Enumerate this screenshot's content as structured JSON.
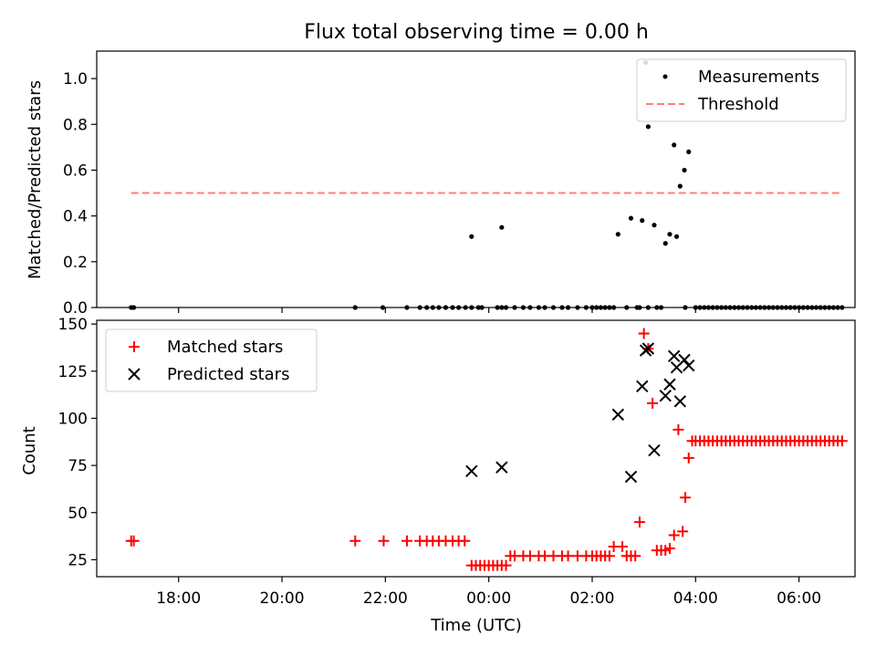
{
  "chart_data": [
    {
      "type": "scatter",
      "title": "Flux total observing time = 0.00 h",
      "xlabel": "",
      "ylabel": "Matched/Predicted stars",
      "ylim": [
        0,
        1.12
      ],
      "yticks": [
        "0.0",
        "0.2",
        "0.4",
        "0.6",
        "0.8",
        "1.0"
      ],
      "legend_position": "upper right",
      "series": [
        {
          "name": "Measurements",
          "color": "#000000",
          "marker": "dot",
          "x": [
            "17:05",
            "17:08",
            "21:25",
            "21:57",
            "22:25",
            "22:40",
            "22:48",
            "22:55",
            "23:02",
            "23:10",
            "23:18",
            "23:25",
            "23:33",
            "23:40",
            "23:48",
            "23:52",
            "00:10",
            "00:15",
            "00:20",
            "00:30",
            "00:40",
            "00:48",
            "00:58",
            "01:05",
            "01:15",
            "01:25",
            "01:32",
            "01:43",
            "01:53",
            "02:00",
            "02:05",
            "02:10",
            "02:15",
            "02:20",
            "02:25",
            "02:40",
            "02:52",
            "02:55",
            "03:05",
            "03:15",
            "03:20",
            "03:48",
            "04:00",
            "04:05",
            "04:10",
            "04:15",
            "04:20",
            "04:25",
            "04:30",
            "04:35",
            "04:40",
            "04:45",
            "04:50",
            "04:55",
            "05:00",
            "05:05",
            "05:10",
            "05:15",
            "05:20",
            "05:25",
            "05:30",
            "05:35",
            "05:40",
            "05:45",
            "05:50",
            "05:55",
            "06:00",
            "06:05",
            "06:10",
            "06:15",
            "06:20",
            "06:25",
            "06:30",
            "06:35",
            "06:40",
            "06:45",
            "06:50",
            "23:40",
            "00:15",
            "02:30",
            "02:45",
            "02:58",
            "03:02",
            "03:05",
            "03:12",
            "03:25",
            "03:30",
            "03:35",
            "03:38",
            "03:42",
            "03:47",
            "03:52"
          ],
          "y": [
            0,
            0,
            0,
            0,
            0,
            0,
            0,
            0,
            0,
            0,
            0,
            0,
            0,
            0,
            0,
            0,
            0,
            0,
            0,
            0,
            0,
            0,
            0,
            0,
            0,
            0,
            0,
            0,
            0,
            0,
            0,
            0,
            0,
            0,
            0,
            0,
            0,
            0,
            0,
            0,
            0,
            0,
            0,
            0,
            0,
            0,
            0,
            0,
            0,
            0,
            0,
            0,
            0,
            0,
            0,
            0,
            0,
            0,
            0,
            0,
            0,
            0,
            0,
            0,
            0,
            0,
            0,
            0,
            0,
            0,
            0,
            0,
            0,
            0,
            0,
            0,
            0,
            0.31,
            0.35,
            0.32,
            0.39,
            0.38,
            1.07,
            0.79,
            0.36,
            0.28,
            0.32,
            0.71,
            0.31,
            0.53,
            0.6,
            0.68
          ]
        },
        {
          "name": "Threshold",
          "color": "#ff7f7f",
          "style": "dashed",
          "x": [
            "17:05",
            "06:50"
          ],
          "y": [
            0.5,
            0.5
          ]
        }
      ]
    },
    {
      "type": "scatter",
      "title": "",
      "xlabel": "Time (UTC)",
      "ylabel": "Count",
      "ylim": [
        16,
        152
      ],
      "yticks": [
        "25",
        "50",
        "75",
        "100",
        "125",
        "150"
      ],
      "xticks": [
        "18:00",
        "20:00",
        "22:00",
        "00:00",
        "02:00",
        "04:00",
        "06:00"
      ],
      "x_range": [
        "16:25",
        "07:05"
      ],
      "legend_position": "upper left",
      "series": [
        {
          "name": "Matched stars",
          "color": "#ff0000",
          "marker": "plus",
          "x": [
            "17:05",
            "17:08",
            "21:25",
            "21:58",
            "22:25",
            "22:40",
            "22:48",
            "22:55",
            "23:02",
            "23:10",
            "23:18",
            "23:25",
            "23:32",
            "23:40",
            "23:45",
            "23:50",
            "23:55",
            "00:00",
            "00:05",
            "00:10",
            "00:15",
            "00:20",
            "00:25",
            "00:30",
            "00:40",
            "00:48",
            "00:58",
            "01:05",
            "01:15",
            "01:25",
            "01:32",
            "01:43",
            "01:53",
            "02:00",
            "02:05",
            "02:10",
            "02:15",
            "02:20",
            "02:25",
            "02:35",
            "02:40",
            "02:45",
            "02:50",
            "02:55",
            "03:00",
            "03:05",
            "03:10",
            "03:15",
            "03:20",
            "03:25",
            "03:30",
            "03:35",
            "03:40",
            "03:45",
            "03:48",
            "03:52",
            "03:56",
            "04:00",
            "04:05",
            "04:10",
            "04:15",
            "04:20",
            "04:25",
            "04:30",
            "04:35",
            "04:40",
            "04:45",
            "04:50",
            "04:55",
            "05:00",
            "05:05",
            "05:10",
            "05:15",
            "05:20",
            "05:25",
            "05:30",
            "05:35",
            "05:40",
            "05:45",
            "05:50",
            "05:55",
            "06:00",
            "06:05",
            "06:10",
            "06:15",
            "06:20",
            "06:25",
            "06:30",
            "06:35",
            "06:40",
            "06:45",
            "06:50"
          ],
          "y": [
            35,
            35,
            35,
            35,
            35,
            35,
            35,
            35,
            35,
            35,
            35,
            35,
            35,
            22,
            22,
            22,
            22,
            22,
            22,
            22,
            22,
            22,
            27,
            27,
            27,
            27,
            27,
            27,
            27,
            27,
            27,
            27,
            27,
            27,
            27,
            27,
            27,
            27,
            32,
            32,
            27,
            27,
            27,
            45,
            145,
            137,
            108,
            30,
            30,
            30,
            31,
            38,
            94,
            40,
            58,
            79,
            88,
            88,
            88,
            88,
            88,
            88,
            88,
            88,
            88,
            88,
            88,
            88,
            88,
            88,
            88,
            88,
            88,
            88,
            88,
            88,
            88,
            88,
            88,
            88,
            88,
            88,
            88,
            88,
            88,
            88,
            88,
            88,
            88,
            88,
            88,
            88
          ]
        },
        {
          "name": "Predicted stars",
          "color": "#000000",
          "marker": "x",
          "x": [
            "23:40",
            "00:15",
            "02:30",
            "02:45",
            "02:58",
            "03:02",
            "03:05",
            "03:12",
            "03:25",
            "03:30",
            "03:35",
            "03:38",
            "03:42",
            "03:47",
            "03:52"
          ],
          "y": [
            72,
            74,
            102,
            69,
            117,
            136,
            137,
            83,
            112,
            118,
            133,
            127,
            109,
            131,
            128
          ]
        }
      ]
    }
  ]
}
